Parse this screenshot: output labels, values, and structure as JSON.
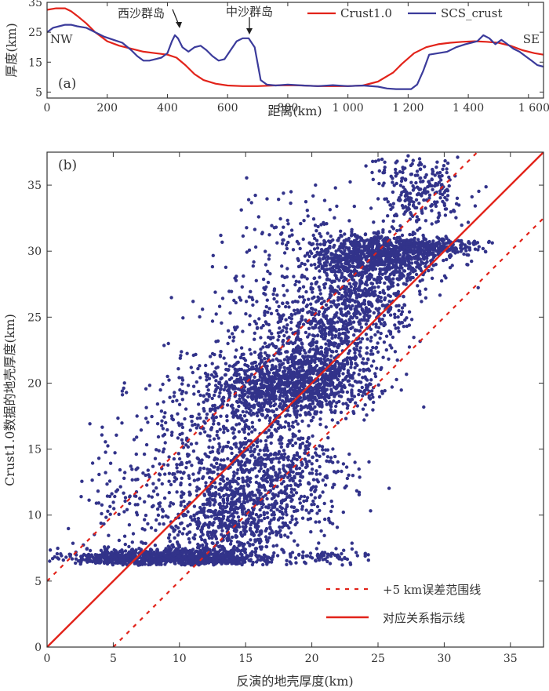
{
  "chart_data": [
    {
      "type": "line",
      "panel_label": "(a)",
      "xlabel": "距离(km)",
      "ylabel": "厚度(km)",
      "xlim": [
        0,
        1650
      ],
      "ylim": [
        3,
        35
      ],
      "xticks": [
        0,
        200,
        400,
        600,
        800,
        1000,
        1200,
        1400,
        1600
      ],
      "xtick_labels": [
        "0",
        "200",
        "400",
        "600",
        "800",
        "1 000",
        "1 200",
        "1 400",
        "1 600"
      ],
      "yticks": [
        5,
        15,
        25,
        35
      ],
      "ytick_labels": [
        "5",
        "15",
        "25",
        "35"
      ],
      "end_labels": {
        "left": "NW",
        "right": "SE"
      },
      "annotations": [
        {
          "text": "西沙群岛",
          "x": 432,
          "y": 30
        },
        {
          "text": "中沙群岛",
          "x": 664,
          "y": 30
        }
      ],
      "legend_position": "top-right",
      "colors": {
        "Crust1.0": "#e2231a",
        "SCS_crust": "#3b3b9b"
      },
      "series": [
        {
          "name": "Crust1.0",
          "x": [
            0,
            30,
            60,
            80,
            100,
            130,
            160,
            200,
            240,
            280,
            320,
            360,
            400,
            430,
            460,
            490,
            520,
            560,
            600,
            650,
            700,
            750,
            800,
            850,
            900,
            950,
            1000,
            1050,
            1100,
            1150,
            1180,
            1220,
            1260,
            1300,
            1340,
            1380,
            1420,
            1460,
            1500,
            1540,
            1580,
            1620,
            1650
          ],
          "values": [
            32.5,
            33,
            33,
            32,
            30.5,
            28,
            25,
            22,
            20.5,
            19.5,
            18.5,
            18,
            17.5,
            16.5,
            14,
            11,
            9,
            7.8,
            7.2,
            7,
            7,
            7.2,
            7.3,
            7.2,
            7,
            7,
            7,
            7.2,
            8.5,
            11.5,
            14.5,
            18,
            20,
            21,
            21.5,
            21.8,
            22,
            21.8,
            21.5,
            20.5,
            19,
            18,
            17.5
          ]
        },
        {
          "name": "SCS_crust",
          "x": [
            0,
            20,
            40,
            60,
            80,
            100,
            130,
            160,
            190,
            220,
            250,
            280,
            300,
            320,
            340,
            360,
            380,
            400,
            415,
            425,
            435,
            450,
            470,
            490,
            510,
            530,
            550,
            570,
            590,
            610,
            630,
            650,
            670,
            690,
            710,
            730,
            760,
            800,
            850,
            900,
            950,
            1000,
            1050,
            1100,
            1130,
            1160,
            1190,
            1210,
            1230,
            1250,
            1270,
            1300,
            1330,
            1360,
            1390,
            1410,
            1430,
            1450,
            1470,
            1490,
            1510,
            1530,
            1550,
            1570,
            1590,
            1610,
            1630,
            1650
          ],
          "values": [
            25,
            26.5,
            27,
            27.5,
            27.5,
            27,
            26.5,
            25,
            23.5,
            22.5,
            21.5,
            19,
            17,
            15.5,
            15.5,
            16,
            16.5,
            18,
            22,
            24,
            23,
            20,
            18.5,
            20,
            20.5,
            19,
            17,
            15.5,
            16,
            19,
            22,
            23,
            23,
            20,
            9,
            7.5,
            7.2,
            7.5,
            7.2,
            7,
            7.3,
            7,
            7.2,
            6.8,
            6.2,
            6,
            6,
            6,
            7.5,
            12,
            17.5,
            18,
            18.5,
            20,
            21,
            21.5,
            22,
            24,
            23,
            21,
            22.5,
            21,
            19.5,
            18.5,
            17,
            15.5,
            14,
            13.5
          ]
        }
      ]
    },
    {
      "type": "scatter",
      "panel_label": "(b)",
      "xlabel": "反演的地壳厚度(km)",
      "ylabel": "Crust1.0数据的地壳厚度(km)",
      "xlim": [
        0,
        37.5
      ],
      "ylim": [
        0,
        37.5
      ],
      "xticks": [
        0,
        5,
        10,
        15,
        20,
        25,
        30,
        35
      ],
      "yticks": [
        0,
        5,
        10,
        15,
        20,
        25,
        30,
        35
      ],
      "legend_position": "bottom-right",
      "colors": {
        "points": "#32338a",
        "line": "#e2231a"
      },
      "lines": [
        {
          "name": "+5 km误差范围线",
          "style": "dashed",
          "offsets": [
            5,
            -5
          ]
        },
        {
          "name": "对应关系指示线",
          "style": "solid",
          "offset": 0
        }
      ],
      "clusters": [
        {
          "cx": 10,
          "cy": 6.8,
          "sx": 3.8,
          "sy": 0.35,
          "n": 900
        },
        {
          "cx": 4.8,
          "cy": 6.7,
          "sx": 1.2,
          "sy": 0.25,
          "n": 160
        },
        {
          "cx": 21.5,
          "cy": 6.9,
          "sx": 1.4,
          "sy": 0.25,
          "n": 60
        },
        {
          "cx": 13.5,
          "cy": 9.5,
          "sx": 2.6,
          "sy": 2.0,
          "n": 650
        },
        {
          "cx": 17,
          "cy": 13,
          "sx": 2.8,
          "sy": 2.3,
          "n": 650
        },
        {
          "cx": 18,
          "cy": 19.8,
          "sx": 2.8,
          "sy": 1.2,
          "n": 950
        },
        {
          "cx": 21,
          "cy": 22.5,
          "sx": 2.4,
          "sy": 2.0,
          "n": 600
        },
        {
          "cx": 23.5,
          "cy": 26.5,
          "sx": 2.0,
          "sy": 1.6,
          "n": 500
        },
        {
          "cx": 25,
          "cy": 29.6,
          "sx": 2.4,
          "sy": 0.9,
          "n": 900
        },
        {
          "cx": 29,
          "cy": 30.3,
          "sx": 1.8,
          "sy": 0.35,
          "n": 220
        },
        {
          "cx": 28,
          "cy": 34.5,
          "sx": 1.8,
          "sy": 1.4,
          "n": 260
        },
        {
          "cx": 12,
          "cy": 16,
          "sx": 3.0,
          "sy": 3.0,
          "n": 350
        },
        {
          "cx": 16,
          "cy": 23,
          "sx": 2.6,
          "sy": 3.5,
          "n": 220
        },
        {
          "cx": 6,
          "cy": 11,
          "sx": 1.8,
          "sy": 2.0,
          "n": 90
        },
        {
          "cx": 19,
          "cy": 30,
          "sx": 2.5,
          "sy": 2.5,
          "n": 120
        }
      ]
    }
  ]
}
